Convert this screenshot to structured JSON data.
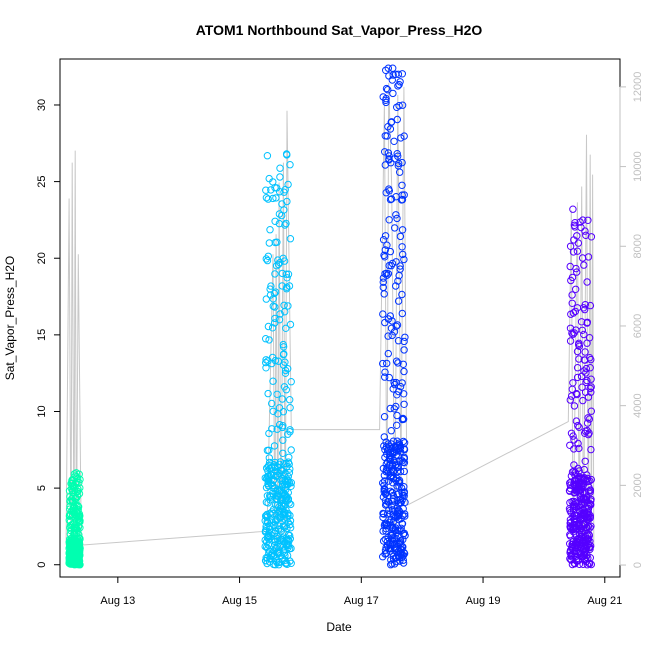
{
  "chart_data": {
    "type": "scatter",
    "title": "ATOM1 Northbound Sat_Vapor_Press_H2O",
    "xlabel": "Date",
    "ylabel": "Sat_Vapor_Press_H2O",
    "x_ticks": [
      "Aug 13",
      "Aug 15",
      "Aug 17",
      "Aug 19",
      "Aug 21"
    ],
    "x_tick_days": [
      13,
      15,
      17,
      19,
      21
    ],
    "xlim": [
      12.05,
      21.25
    ],
    "ylim": [
      -0.8,
      33.0
    ],
    "y_ticks": [
      0,
      5,
      10,
      15,
      20,
      25,
      30
    ],
    "y2_ticks": [
      0,
      2000,
      4000,
      6000,
      8000,
      10000,
      12000
    ],
    "y2lim": [
      -300,
      12700
    ],
    "grid": false,
    "y2_color": "#c0c0c0",
    "clusters": [
      {
        "start_day": 12.2,
        "end_day": 12.38,
        "max": 6.0,
        "color": "#00ffb0"
      },
      {
        "start_day": 15.42,
        "end_day": 15.85,
        "max": 26.8,
        "color": "#00c2ff"
      },
      {
        "start_day": 17.35,
        "end_day": 17.72,
        "max": 32.4,
        "color": "#0033ff"
      },
      {
        "start_day": 20.42,
        "end_day": 20.78,
        "max": 23.2,
        "color": "#5500ff"
      }
    ],
    "line_series": {
      "color": "#c8c8c8",
      "points": [
        [
          12.15,
          500
        ],
        [
          12.2,
          9200
        ],
        [
          12.23,
          100
        ],
        [
          12.25,
          10100
        ],
        [
          12.28,
          200
        ],
        [
          12.3,
          10400
        ],
        [
          12.32,
          150
        ],
        [
          12.35,
          7800
        ],
        [
          12.4,
          500
        ],
        [
          15.45,
          850
        ],
        [
          15.55,
          7800
        ],
        [
          15.58,
          300
        ],
        [
          15.6,
          8300
        ],
        [
          15.63,
          200
        ],
        [
          15.65,
          9600
        ],
        [
          15.68,
          300
        ],
        [
          15.72,
          10100
        ],
        [
          15.75,
          400
        ],
        [
          15.78,
          11400
        ],
        [
          15.8,
          9000
        ],
        [
          15.85,
          3400
        ],
        [
          17.3,
          3400
        ],
        [
          17.38,
          11600
        ],
        [
          17.42,
          1000
        ],
        [
          17.45,
          12100
        ],
        [
          17.5,
          9500
        ],
        [
          17.55,
          800
        ],
        [
          17.6,
          11800
        ],
        [
          17.65,
          2000
        ],
        [
          17.7,
          12000
        ],
        [
          17.75,
          1500
        ],
        [
          20.4,
          3600
        ],
        [
          20.45,
          8900
        ],
        [
          20.48,
          300
        ],
        [
          20.55,
          9100
        ],
        [
          20.58,
          400
        ],
        [
          20.62,
          9500
        ],
        [
          20.65,
          200
        ],
        [
          20.7,
          10800
        ],
        [
          20.73,
          200
        ],
        [
          20.76,
          10300
        ],
        [
          20.78,
          300
        ],
        [
          20.8,
          9800
        ],
        [
          20.82,
          500
        ]
      ]
    }
  }
}
